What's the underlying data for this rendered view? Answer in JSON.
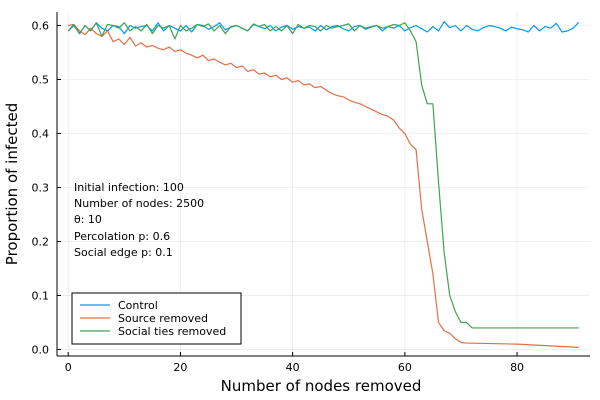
{
  "chart_data": {
    "type": "line",
    "title": "",
    "xlabel": "Number of nodes removed",
    "ylabel": "Proportion of infected",
    "xlim": [
      -2,
      93
    ],
    "ylim": [
      -0.012,
      0.625
    ],
    "xticks": [
      0,
      20,
      40,
      60,
      80
    ],
    "yticks": [
      0.0,
      0.1,
      0.2,
      0.3,
      0.4,
      0.5,
      0.6
    ],
    "ytick_labels": [
      "0.0",
      "0.1",
      "0.2",
      "0.3",
      "0.4",
      "0.5",
      "0.6"
    ],
    "grid": true,
    "legend_position": "bottom-left",
    "annotations": [
      "Initial infection: 100",
      "Number of nodes: 2500",
      "θ: 10",
      "Percolation p: 0.6",
      "Social edge p: 0.1"
    ],
    "series": [
      {
        "name": "Control",
        "color": "#009AFA",
        "x": [
          0,
          1,
          2,
          3,
          4,
          5,
          6,
          7,
          8,
          9,
          10,
          11,
          12,
          13,
          14,
          15,
          16,
          17,
          18,
          19,
          20,
          21,
          22,
          23,
          24,
          25,
          26,
          27,
          28,
          29,
          30,
          31,
          32,
          33,
          34,
          35,
          36,
          37,
          38,
          39,
          40,
          41,
          42,
          43,
          44,
          45,
          46,
          47,
          48,
          49,
          50,
          51,
          52,
          53,
          54,
          55,
          56,
          57,
          58,
          59,
          60,
          61,
          62,
          63,
          64,
          65,
          66,
          67,
          68,
          69,
          70,
          71,
          72,
          73,
          74,
          75,
          76,
          77,
          78,
          79,
          80,
          81,
          82,
          83,
          84,
          85,
          86,
          87,
          88,
          89,
          90,
          91
        ],
        "values": [
          0.59,
          0.6,
          0.585,
          0.6,
          0.59,
          0.605,
          0.595,
          0.59,
          0.6,
          0.598,
          0.585,
          0.6,
          0.595,
          0.598,
          0.6,
          0.59,
          0.605,
          0.59,
          0.6,
          0.595,
          0.59,
          0.6,
          0.588,
          0.602,
          0.6,
          0.593,
          0.598,
          0.605,
          0.592,
          0.597,
          0.6,
          0.595,
          0.59,
          0.602,
          0.598,
          0.594,
          0.6,
          0.59,
          0.597,
          0.6,
          0.593,
          0.598,
          0.595,
          0.597,
          0.59,
          0.6,
          0.592,
          0.598,
          0.6,
          0.594,
          0.59,
          0.598,
          0.6,
          0.593,
          0.597,
          0.6,
          0.59,
          0.598,
          0.595,
          0.6,
          0.59,
          0.596,
          0.6,
          0.594,
          0.588,
          0.598,
          0.59,
          0.607,
          0.596,
          0.6,
          0.59,
          0.6,
          0.593,
          0.59,
          0.596,
          0.6,
          0.598,
          0.595,
          0.59,
          0.597,
          0.594,
          0.592,
          0.588,
          0.6,
          0.59,
          0.598,
          0.595,
          0.604,
          0.588,
          0.59,
          0.595,
          0.606
        ]
      },
      {
        "name": "Source removed",
        "color": "#E26F46",
        "x": [
          0,
          1,
          2,
          3,
          4,
          5,
          6,
          7,
          8,
          9,
          10,
          11,
          12,
          13,
          14,
          15,
          16,
          17,
          18,
          19,
          20,
          21,
          22,
          23,
          24,
          25,
          26,
          27,
          28,
          29,
          30,
          31,
          32,
          33,
          34,
          35,
          36,
          37,
          38,
          39,
          40,
          41,
          42,
          43,
          44,
          45,
          46,
          47,
          48,
          49,
          50,
          51,
          52,
          53,
          54,
          55,
          56,
          57,
          58,
          59,
          60,
          61,
          62,
          63,
          64,
          65,
          66,
          67,
          68,
          69,
          70,
          71,
          80,
          91
        ],
        "values": [
          0.6,
          0.602,
          0.59,
          0.583,
          0.595,
          0.585,
          0.58,
          0.59,
          0.57,
          0.575,
          0.565,
          0.578,
          0.562,
          0.568,
          0.56,
          0.563,
          0.558,
          0.555,
          0.56,
          0.552,
          0.555,
          0.549,
          0.545,
          0.54,
          0.545,
          0.535,
          0.538,
          0.532,
          0.527,
          0.53,
          0.522,
          0.525,
          0.515,
          0.518,
          0.51,
          0.512,
          0.505,
          0.508,
          0.5,
          0.503,
          0.495,
          0.498,
          0.49,
          0.492,
          0.485,
          0.487,
          0.48,
          0.474,
          0.47,
          0.468,
          0.462,
          0.458,
          0.455,
          0.45,
          0.445,
          0.44,
          0.435,
          0.432,
          0.425,
          0.41,
          0.4,
          0.38,
          0.37,
          0.26,
          0.2,
          0.14,
          0.05,
          0.035,
          0.03,
          0.02,
          0.013,
          0.012,
          0.01,
          0.004
        ]
      },
      {
        "name": "Social ties removed",
        "color": "#3DA44D",
        "x": [
          0,
          1,
          2,
          3,
          4,
          5,
          6,
          7,
          8,
          9,
          10,
          11,
          12,
          13,
          14,
          15,
          16,
          17,
          18,
          19,
          20,
          21,
          22,
          23,
          24,
          25,
          26,
          27,
          28,
          29,
          30,
          31,
          32,
          33,
          34,
          35,
          36,
          37,
          38,
          39,
          40,
          41,
          42,
          43,
          44,
          45,
          46,
          47,
          48,
          49,
          50,
          51,
          52,
          53,
          54,
          55,
          56,
          57,
          58,
          59,
          60,
          61,
          62,
          63,
          64,
          65,
          66,
          67,
          68,
          69,
          70,
          71,
          72,
          91
        ],
        "values": [
          0.59,
          0.602,
          0.585,
          0.6,
          0.59,
          0.605,
          0.58,
          0.602,
          0.6,
          0.595,
          0.605,
          0.59,
          0.598,
          0.59,
          0.602,
          0.585,
          0.6,
          0.595,
          0.6,
          0.575,
          0.6,
          0.59,
          0.595,
          0.602,
          0.598,
          0.603,
          0.59,
          0.6,
          0.585,
          0.598,
          0.6,
          0.595,
          0.59,
          0.603,
          0.598,
          0.602,
          0.59,
          0.598,
          0.59,
          0.6,
          0.585,
          0.602,
          0.595,
          0.6,
          0.598,
          0.59,
          0.6,
          0.595,
          0.598,
          0.6,
          0.603,
          0.59,
          0.6,
          0.595,
          0.598,
          0.6,
          0.595,
          0.598,
          0.602,
          0.6,
          0.605,
          0.59,
          0.57,
          0.49,
          0.455,
          0.455,
          0.31,
          0.18,
          0.1,
          0.07,
          0.05,
          0.05,
          0.04,
          0.04
        ]
      }
    ]
  }
}
